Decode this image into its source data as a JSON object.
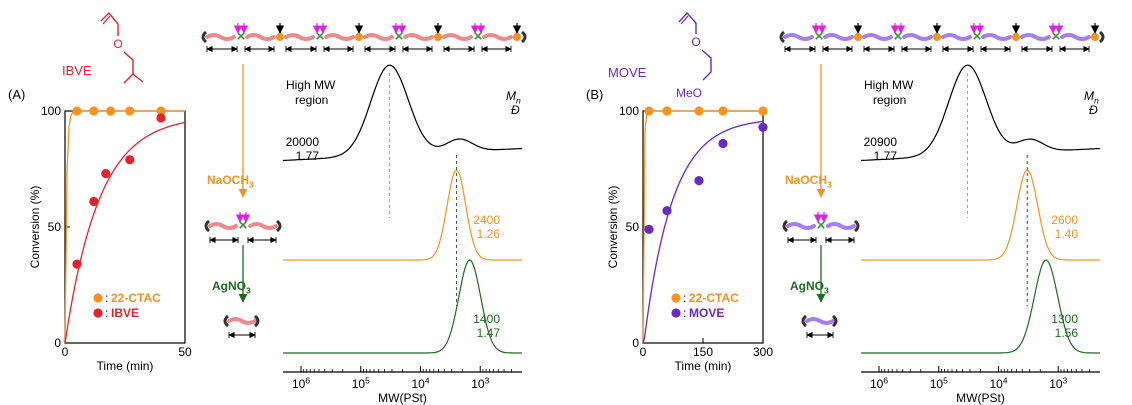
{
  "colors": {
    "ibve": "#e8222a",
    "ctac": "#f7931e",
    "move": "#6a28c8",
    "chain_ibve": "#ef8a8a",
    "chain_move": "#a77ef0",
    "nao": "#f7931e",
    "agno": "#1f6b1f",
    "axis": "#000000",
    "trace_high": "#000000",
    "arrow_magenta": "#e020e0",
    "x_green": "#2e9e2e"
  },
  "panels": [
    {
      "label": "(A)",
      "monomer_name": "IBVE",
      "monomer_color": "#e8222a",
      "monomer_type": "ibve",
      "chain_color": "#ef8a8a",
      "kinetics": {
        "ylabel": "Conversion (%)",
        "xlabel": "Time (min)",
        "xticks": [
          "0",
          "50"
        ],
        "yticks": [
          "0",
          "50",
          "100"
        ],
        "legend": [
          {
            "marker_color": "#f7931e",
            "sep": ":",
            "text": "22-CTAC"
          },
          {
            "marker_color": "#e8222a",
            "sep": ":",
            "text": "IBVE"
          }
        ]
      },
      "sec": {
        "high_label_line1": "High MW",
        "high_label_line2": "region",
        "mn_symbol": "M",
        "mn_sub": "n",
        "dispersity_symbol": "Đ",
        "xlabel": "MW(PSt)",
        "xticks": [
          "10",
          "10",
          "10",
          "10"
        ],
        "xtick_exps": [
          "6",
          "5",
          "4",
          "3"
        ],
        "traces": [
          {
            "mn": "20000",
            "d": "1.77",
            "color": "#000000"
          },
          {
            "mn": "2400",
            "d": "1.26",
            "color": "#f7931e"
          },
          {
            "mn": "1400",
            "d": "1.47",
            "color": "#1f6b1f"
          }
        ]
      },
      "reagents": {
        "first_main": "NaOCH",
        "first_sub": "3",
        "second_main": "AgNO",
        "second_sub": "3"
      }
    },
    {
      "label": "(B)",
      "monomer_name": "MOVE",
      "monomer_color": "#6a28c8",
      "monomer_type": "move",
      "methoxy_label": "MeO",
      "chain_color": "#a77ef0",
      "kinetics": {
        "ylabel": "Conversion (%)",
        "xlabel": "Time (min)",
        "xticks": [
          "0",
          "150",
          "300"
        ],
        "yticks": [
          "0",
          "50",
          "100"
        ],
        "legend": [
          {
            "marker_color": "#f7931e",
            "sep": ":",
            "text": "22-CTAC"
          },
          {
            "marker_color": "#6a28c8",
            "sep": ":",
            "text": "MOVE"
          }
        ]
      },
      "sec": {
        "high_label_line1": "High MW",
        "high_label_line2": "region",
        "mn_symbol": "M",
        "mn_sub": "n",
        "dispersity_symbol": "Đ",
        "xlabel": "MW(PSt)",
        "xticks": [
          "10",
          "10",
          "10",
          "10"
        ],
        "xtick_exps": [
          "6",
          "5",
          "4",
          "3"
        ],
        "traces": [
          {
            "mn": "20900",
            "d": "1.77",
            "color": "#000000"
          },
          {
            "mn": "2600",
            "d": "1.40",
            "color": "#f7931e"
          },
          {
            "mn": "1300",
            "d": "1.56",
            "color": "#1f6b1f"
          }
        ]
      },
      "reagents": {
        "first_main": "NaOCH",
        "first_sub": "3",
        "second_main": "AgNO",
        "second_sub": "3"
      }
    }
  ],
  "chart_data": [
    {
      "type": "scatter",
      "xlabel": "Time (min)",
      "ylabel": "Conversion (%)",
      "xlim": [
        0,
        50
      ],
      "ylim": [
        0,
        100
      ],
      "series": [
        {
          "name": "22-CTAC",
          "x": [
            5,
            12,
            19,
            27,
            40
          ],
          "y": [
            100,
            100,
            100,
            100,
            100
          ]
        },
        {
          "name": "IBVE",
          "x": [
            5,
            12,
            17,
            27,
            40
          ],
          "y": [
            34,
            61,
            73,
            79,
            97
          ]
        }
      ]
    },
    {
      "type": "scatter",
      "xlabel": "Time (min)",
      "ylabel": "Conversion (%)",
      "xlim": [
        0,
        300
      ],
      "ylim": [
        0,
        100
      ],
      "series": [
        {
          "name": "22-CTAC",
          "x": [
            15,
            60,
            140,
            200,
            300
          ],
          "y": [
            100,
            100,
            100,
            100,
            100
          ]
        },
        {
          "name": "MOVE",
          "x": [
            15,
            60,
            140,
            200,
            300
          ],
          "y": [
            49,
            57,
            70,
            86,
            93
          ]
        }
      ]
    },
    {
      "type": "line",
      "xlabel": "MW(PSt)",
      "x_scale": "log-reversed",
      "xlim": [
        2000000,
        200
      ],
      "series": [
        {
          "mn": 20000,
          "dispersity": 1.77,
          "peak_mw": 33000
        },
        {
          "mn": 2400,
          "dispersity": 1.26,
          "peak_mw": 2500
        },
        {
          "mn": 1400,
          "dispersity": 1.47,
          "peak_mw": 1500
        }
      ]
    },
    {
      "type": "line",
      "xlabel": "MW(PSt)",
      "x_scale": "log-reversed",
      "xlim": [
        2000000,
        200
      ],
      "series": [
        {
          "mn": 20900,
          "dispersity": 1.77,
          "peak_mw": 33000
        },
        {
          "mn": 2600,
          "dispersity": 1.4,
          "peak_mw": 3300
        },
        {
          "mn": 1300,
          "dispersity": 1.56,
          "peak_mw": 1600
        }
      ]
    }
  ]
}
